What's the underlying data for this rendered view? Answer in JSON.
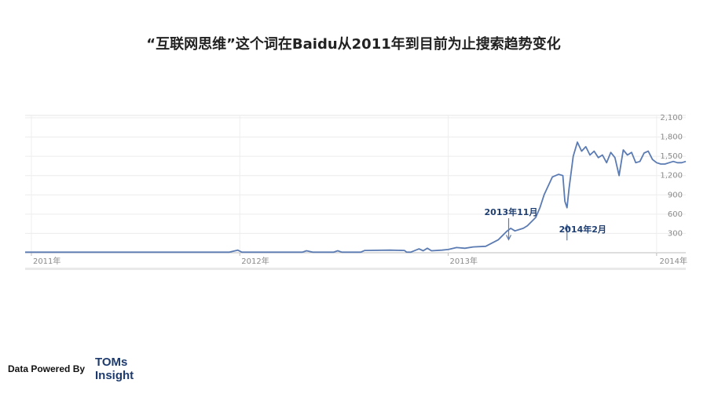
{
  "title": "“互联网思维”这个词在Baidu从2011年到目前为止搜索趋势变化",
  "chart_data": {
    "type": "line",
    "title": "",
    "xlabel": "",
    "ylabel": "",
    "ylim": [
      0,
      2100
    ],
    "y_ticks": [
      "300",
      "600",
      "900",
      "1,200",
      "1,500",
      "1,800",
      "2,100"
    ],
    "y_tick_values": [
      300,
      600,
      900,
      1200,
      1500,
      1800,
      2100
    ],
    "x_ticks": [
      {
        "label": "2011年",
        "x": 2011.0
      },
      {
        "label": "2012年",
        "x": 2012.0
      },
      {
        "label": "2013年",
        "x": 2013.0
      },
      {
        "label": "2014年",
        "x": 2014.0
      }
    ],
    "grid": true,
    "series": [
      {
        "color": "#5b7bb3",
        "x": [
          2010.97,
          2011.5,
          2011.95,
          2011.99,
          2012.01,
          2012.3,
          2012.32,
          2012.35,
          2012.45,
          2012.47,
          2012.49,
          2012.58,
          2012.6,
          2012.72,
          2012.79,
          2012.8,
          2012.82,
          2012.86,
          2012.88,
          2012.9,
          2012.92,
          2012.97,
          2013.0,
          2013.04,
          2013.08,
          2013.12,
          2013.18,
          2013.24,
          2013.28,
          2013.3,
          2013.32,
          2013.34,
          2013.36,
          2013.38,
          2013.42,
          2013.44,
          2013.46,
          2013.5,
          2013.53,
          2013.55,
          2013.56,
          2013.57,
          2013.58,
          2013.6,
          2013.62,
          2013.64,
          2013.66,
          2013.68,
          2013.7,
          2013.72,
          2013.74,
          2013.76,
          2013.78,
          2013.8,
          2013.82,
          2013.84,
          2013.86,
          2013.88,
          2013.9,
          2013.92,
          2013.94,
          2013.96,
          2013.98,
          2014.0,
          2014.02,
          2014.04,
          2014.06,
          2014.08,
          2014.1,
          2014.12,
          2014.14
        ],
        "values": [
          8,
          8,
          8,
          40,
          8,
          8,
          30,
          8,
          8,
          30,
          8,
          8,
          35,
          40,
          35,
          10,
          8,
          60,
          30,
          70,
          30,
          40,
          50,
          80,
          70,
          90,
          100,
          200,
          330,
          380,
          340,
          360,
          380,
          420,
          550,
          700,
          900,
          1180,
          1220,
          1200,
          800,
          700,
          1000,
          1500,
          1720,
          1580,
          1650,
          1520,
          1580,
          1480,
          1520,
          1400,
          1560,
          1480,
          1200,
          1600,
          1520,
          1560,
          1400,
          1420,
          1550,
          1580,
          1450,
          1400,
          1380,
          1380,
          1400,
          1420,
          1400,
          1400,
          1420
        ]
      }
    ],
    "annotations": [
      {
        "text": "2013年11月",
        "x": 2013.29,
        "y": 190
      },
      {
        "text": "2014年2月",
        "x": 2013.57,
        "y": 460
      }
    ]
  },
  "footer": {
    "label": "Data Powered By",
    "brand_line1": "TOMs",
    "brand_line2": "Insight"
  }
}
